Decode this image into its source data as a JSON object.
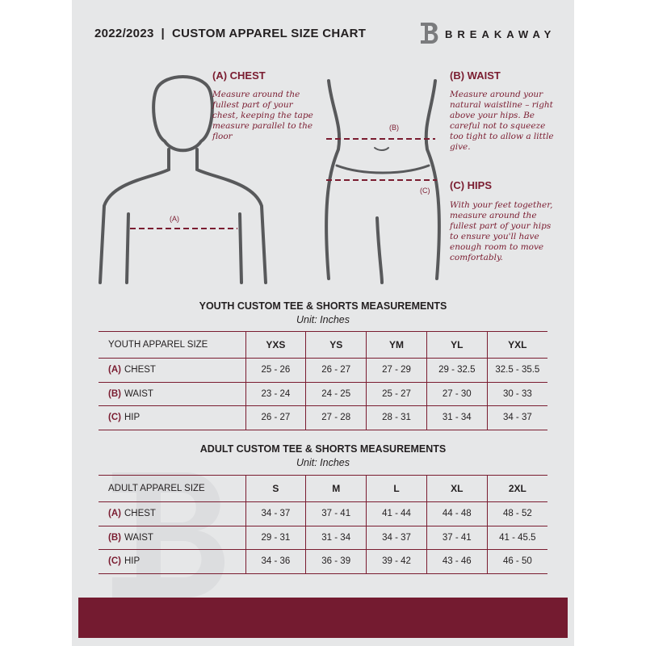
{
  "header": {
    "title": "2022/2023  |  CUSTOM APPAREL SIZE CHART",
    "brand": "BREAKAWAY",
    "logo_letter": "B"
  },
  "measure": {
    "chest": {
      "heading": "(A) CHEST",
      "label": "(A)",
      "text": "Measure around the fullest part of your chest, keeping the tape measure parallel to the floor"
    },
    "waist": {
      "heading": "(B) WAIST",
      "label": "(B)",
      "text": "Measure around your natural waistline – right above your hips. Be careful not to squeeze too tight to allow a little give."
    },
    "hips": {
      "heading": "(C) HIPS",
      "label": "(C)",
      "text": "With your feet together, measure around the fullest part of your hips to ensure you'll have enough room to move comfortably."
    }
  },
  "youth": {
    "title": "YOUTH CUSTOM TEE & SHORTS MEASUREMENTS",
    "unit": "Unit: Inches",
    "corner": "YOUTH APPAREL SIZE",
    "sizes": [
      "YXS",
      "YS",
      "YM",
      "YL",
      "YXL"
    ],
    "rows": [
      {
        "letter": "(A)",
        "name": "CHEST",
        "values": [
          "25 - 26",
          "26 - 27",
          "27 - 29",
          "29 - 32.5",
          "32.5 - 35.5"
        ]
      },
      {
        "letter": "(B)",
        "name": "WAIST",
        "values": [
          "23 - 24",
          "24 - 25",
          "25 - 27",
          "27 - 30",
          "30 - 33"
        ]
      },
      {
        "letter": "(C)",
        "name": "HIP",
        "values": [
          "26 - 27",
          "27 - 28",
          "28 - 31",
          "31 - 34",
          "34 - 37"
        ]
      }
    ]
  },
  "adult": {
    "title": "ADULT CUSTOM TEE & SHORTS MEASUREMENTS",
    "unit": "Unit: Inches",
    "corner": "ADULT APPAREL SIZE",
    "sizes": [
      "S",
      "M",
      "L",
      "XL",
      "2XL"
    ],
    "rows": [
      {
        "letter": "(A)",
        "name": "CHEST",
        "values": [
          "34 - 37",
          "37 - 41",
          "41 - 44",
          "44 - 48",
          "48 - 52"
        ]
      },
      {
        "letter": "(B)",
        "name": "WAIST",
        "values": [
          "29 - 31",
          "31 - 34",
          "34 - 37",
          "37 - 41",
          "41 - 45.5"
        ]
      },
      {
        "letter": "(C)",
        "name": "HIP",
        "values": [
          "34 - 36",
          "36 - 39",
          "39 - 42",
          "43 - 46",
          "46 - 50"
        ]
      }
    ]
  },
  "colors": {
    "accent": "#741b30",
    "background": "#e6e7e8"
  }
}
